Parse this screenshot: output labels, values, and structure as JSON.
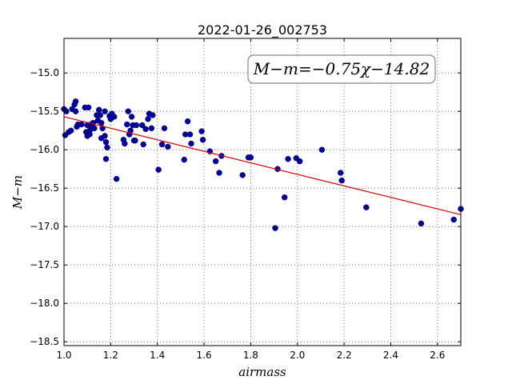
{
  "chart_data": {
    "type": "scatter",
    "title": "2022-01-26_002753",
    "xlabel": "airmass",
    "ylabel": "M−m",
    "annotation": "M−m=−0.75χ−14.82",
    "xlim": [
      1.0,
      2.7
    ],
    "ylim": [
      -18.55,
      -14.55
    ],
    "y_inverted": false,
    "grid": true,
    "x_ticks": [
      "1.0",
      "1.2",
      "1.4",
      "1.6",
      "1.8",
      "2.0",
      "2.2",
      "2.4",
      "2.6"
    ],
    "x_tick_values": [
      1.0,
      1.2,
      1.4,
      1.6,
      1.8,
      2.0,
      2.2,
      2.4,
      2.6
    ],
    "y_ticks": [
      "−15.0",
      "−15.5",
      "−16.0",
      "−16.5",
      "−17.0",
      "−17.5",
      "−18.0",
      "−18.5"
    ],
    "y_tick_values": [
      -15.0,
      -15.5,
      -16.0,
      -16.5,
      -17.0,
      -17.5,
      -18.0,
      -18.5
    ],
    "fit": {
      "slope": -0.75,
      "intercept": -14.82,
      "color": "#dd0000"
    },
    "point_color": "#0000aa",
    "points": [
      [
        1.0,
        -15.47
      ],
      [
        1.005,
        -15.81
      ],
      [
        1.01,
        -15.5
      ],
      [
        1.02,
        -15.77
      ],
      [
        1.03,
        -15.75
      ],
      [
        1.035,
        -15.47
      ],
      [
        1.045,
        -15.41
      ],
      [
        1.05,
        -15.37
      ],
      [
        1.05,
        -15.5
      ],
      [
        1.055,
        -15.7
      ],
      [
        1.06,
        -15.67
      ],
      [
        1.075,
        -15.67
      ],
      [
        1.09,
        -15.45
      ],
      [
        1.095,
        -15.77
      ],
      [
        1.1,
        -15.82
      ],
      [
        1.1,
        -15.68
      ],
      [
        1.105,
        -15.45
      ],
      [
        1.11,
        -15.75
      ],
      [
        1.11,
        -15.8
      ],
      [
        1.115,
        -15.67
      ],
      [
        1.12,
        -15.7
      ],
      [
        1.125,
        -15.65
      ],
      [
        1.13,
        -15.72
      ],
      [
        1.14,
        -15.55
      ],
      [
        1.145,
        -15.62
      ],
      [
        1.15,
        -15.48
      ],
      [
        1.155,
        -15.55
      ],
      [
        1.16,
        -15.65
      ],
      [
        1.16,
        -15.85
      ],
      [
        1.165,
        -15.72
      ],
      [
        1.175,
        -15.5
      ],
      [
        1.175,
        -15.82
      ],
      [
        1.18,
        -15.9
      ],
      [
        1.18,
        -16.12
      ],
      [
        1.185,
        -15.97
      ],
      [
        1.195,
        -15.56
      ],
      [
        1.2,
        -15.6
      ],
      [
        1.205,
        -15.53
      ],
      [
        1.215,
        -15.57
      ],
      [
        1.225,
        -16.38
      ],
      [
        1.255,
        -15.87
      ],
      [
        1.26,
        -15.92
      ],
      [
        1.27,
        -15.67
      ],
      [
        1.275,
        -15.5
      ],
      [
        1.28,
        -15.8
      ],
      [
        1.285,
        -15.75
      ],
      [
        1.29,
        -15.57
      ],
      [
        1.295,
        -15.68
      ],
      [
        1.3,
        -15.88
      ],
      [
        1.305,
        -15.88
      ],
      [
        1.31,
        -15.68
      ],
      [
        1.335,
        -15.68
      ],
      [
        1.34,
        -15.93
      ],
      [
        1.35,
        -15.73
      ],
      [
        1.36,
        -15.6
      ],
      [
        1.365,
        -15.53
      ],
      [
        1.375,
        -15.72
      ],
      [
        1.38,
        -15.55
      ],
      [
        1.405,
        -16.26
      ],
      [
        1.42,
        -15.93
      ],
      [
        1.43,
        -15.72
      ],
      [
        1.445,
        -15.96
      ],
      [
        1.515,
        -16.13
      ],
      [
        1.52,
        -15.8
      ],
      [
        1.53,
        -15.63
      ],
      [
        1.54,
        -15.8
      ],
      [
        1.545,
        -15.92
      ],
      [
        1.59,
        -15.76
      ],
      [
        1.595,
        -15.87
      ],
      [
        1.625,
        -16.02
      ],
      [
        1.65,
        -16.15
      ],
      [
        1.665,
        -16.3
      ],
      [
        1.675,
        -16.08
      ],
      [
        1.765,
        -16.33
      ],
      [
        1.79,
        -16.1
      ],
      [
        1.8,
        -16.1
      ],
      [
        1.905,
        -17.02
      ],
      [
        1.915,
        -16.25
      ],
      [
        1.945,
        -16.62
      ],
      [
        1.96,
        -16.12
      ],
      [
        1.995,
        -16.11
      ],
      [
        2.01,
        -16.15
      ],
      [
        2.105,
        -16.0
      ],
      [
        2.185,
        -16.3
      ],
      [
        2.19,
        -16.4
      ],
      [
        2.295,
        -16.75
      ],
      [
        2.53,
        -16.96
      ],
      [
        2.67,
        -16.91
      ],
      [
        2.7,
        -16.77
      ]
    ]
  }
}
